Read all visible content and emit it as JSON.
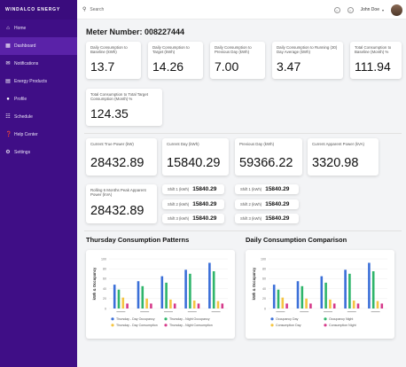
{
  "sidebar": {
    "brand": "WINDALCO ENERGY",
    "items": [
      {
        "label": "Home",
        "icon": "home-icon",
        "active": false
      },
      {
        "label": "Dashboard",
        "icon": "dashboard-icon",
        "active": true
      },
      {
        "label": "Notifications",
        "icon": "mail-icon",
        "active": false
      },
      {
        "label": "Energy Products",
        "icon": "cart-icon",
        "active": false
      },
      {
        "label": "Profile",
        "icon": "user-icon",
        "active": false
      },
      {
        "label": "Schedule",
        "icon": "calendar-icon",
        "active": false
      },
      {
        "label": "Help Center",
        "icon": "help-icon",
        "active": false
      },
      {
        "label": "Settings",
        "icon": "gear-icon",
        "active": false
      }
    ]
  },
  "header": {
    "search_placeholder": "Search",
    "user_name": "John Doe"
  },
  "meter": {
    "title": "Meter Number: 008227444"
  },
  "cards": {
    "c1": {
      "label": "Daily Consumption to Baseline (kWh)",
      "value": "13.7"
    },
    "c2": {
      "label": "Daily Consumption to Target (kWh)",
      "value": "14.26"
    },
    "c3": {
      "label": "Daily Consumption to Previous Day (kWh)",
      "value": "7.00"
    },
    "c4": {
      "label": "Daily Consumption to Running (30) Day Average (kWh)",
      "value": "3.47"
    },
    "c5": {
      "label": "Total Consumption to Baseline (Month) %",
      "value": "111.94"
    },
    "c6": {
      "label": "Total Consumption to Total Target Consumption (Month) %",
      "value": "124.35"
    },
    "c7": {
      "label": "Current True Power (kW)",
      "value": "28432.89"
    },
    "c8": {
      "label": "Current Day (kWh)",
      "value": "15840.29"
    },
    "c9": {
      "label": "Previous Day (kWh)",
      "value": "59366.22"
    },
    "c10": {
      "label": "Current Apparent Power (kVA)",
      "value": "3320.98"
    },
    "c11": {
      "label": "Rolling 6 Months Peak Apparent Power (kVA)",
      "value": "28432.89"
    }
  },
  "shifts": {
    "current": [
      {
        "label": "Shift 1 (kWh)",
        "value": "15840.29"
      },
      {
        "label": "Shift 2 (kWh)",
        "value": "15840.29"
      },
      {
        "label": "Shift 3 (kWh)",
        "value": "15840.29"
      }
    ],
    "previous": [
      {
        "label": "Shift 1 (kWh)",
        "value": "15840.29"
      },
      {
        "label": "Shift 2 (kWh)",
        "value": "15840.29"
      },
      {
        "label": "Shift 3 (kWh)",
        "value": "15840.29"
      }
    ]
  },
  "sections": {
    "thursday_title": "Thursday Consumption Patterns",
    "daily_title": "Daily Consumption Comparison"
  },
  "chart_data": [
    {
      "type": "bar",
      "title": "",
      "ylabel": "kWh & Occupancy",
      "xlabel": "",
      "ylim": [
        0,
        100
      ],
      "yticks": [
        "0",
        "20",
        "40",
        "60",
        "80",
        "100"
      ],
      "categories": [
        "",
        "",
        "",
        "",
        ""
      ],
      "series": [
        {
          "name": "Thursday - Day Occupancy",
          "color": "#3b6fd8",
          "values": [
            48,
            55,
            65,
            78,
            92
          ]
        },
        {
          "name": "Thursday - Night Occupancy",
          "color": "#2fb56b",
          "values": [
            38,
            45,
            52,
            70,
            75
          ]
        },
        {
          "name": "Thursday - Day Consumption",
          "color": "#f4c542",
          "values": [
            22,
            20,
            18,
            16,
            15
          ]
        },
        {
          "name": "Thursday - Night Consumption",
          "color": "#d63a8a",
          "values": [
            10,
            10,
            10,
            10,
            10
          ]
        }
      ],
      "legend": "bottom"
    },
    {
      "type": "bar",
      "title": "",
      "ylabel": "kWh & Occupancy",
      "xlabel": "",
      "ylim": [
        0,
        100
      ],
      "yticks": [
        "0",
        "20",
        "40",
        "60",
        "80",
        "100"
      ],
      "categories": [
        "",
        "",
        "",
        "",
        ""
      ],
      "series": [
        {
          "name": "Occupancy Day",
          "color": "#3b6fd8",
          "values": [
            48,
            55,
            65,
            78,
            92
          ]
        },
        {
          "name": "Occupancy Night",
          "color": "#2fb56b",
          "values": [
            38,
            45,
            52,
            70,
            75
          ]
        },
        {
          "name": "Consumption Day",
          "color": "#f4c542",
          "values": [
            22,
            20,
            18,
            16,
            15
          ]
        },
        {
          "name": "Consumption Night",
          "color": "#d63a8a",
          "values": [
            10,
            10,
            10,
            10,
            10
          ]
        }
      ],
      "legend": "bottom"
    }
  ]
}
